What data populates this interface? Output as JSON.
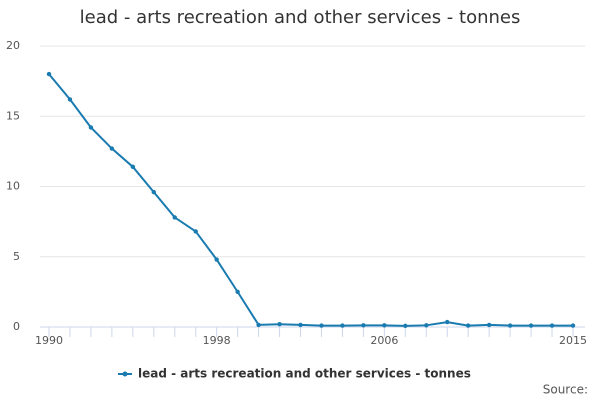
{
  "chart_data": {
    "type": "line",
    "title": "lead - arts recreation and other services - tonnes",
    "x": [
      1990,
      1991,
      1992,
      1993,
      1994,
      1995,
      1996,
      1997,
      1998,
      1999,
      2000,
      2001,
      2002,
      2003,
      2004,
      2005,
      2006,
      2007,
      2008,
      2009,
      2010,
      2011,
      2012,
      2013,
      2014,
      2015
    ],
    "xlim": [
      1990,
      2015
    ],
    "xticks": [
      1990,
      1998,
      2006,
      2015
    ],
    "ylim": [
      0,
      20
    ],
    "yticks": [
      0,
      5,
      10,
      15,
      20
    ],
    "grid": true,
    "series": [
      {
        "name": "lead - arts recreation and other services - tonnes",
        "color": "#1a7bb0",
        "values": [
          18.0,
          16.2,
          14.2,
          12.7,
          11.4,
          9.6,
          7.8,
          6.8,
          4.8,
          2.5,
          0.15,
          0.2,
          0.15,
          0.1,
          0.1,
          0.12,
          0.12,
          0.08,
          0.12,
          0.35,
          0.1,
          0.15,
          0.1,
          0.1,
          0.1,
          0.1
        ]
      }
    ],
    "legend": "bottom",
    "source": "Source:"
  }
}
